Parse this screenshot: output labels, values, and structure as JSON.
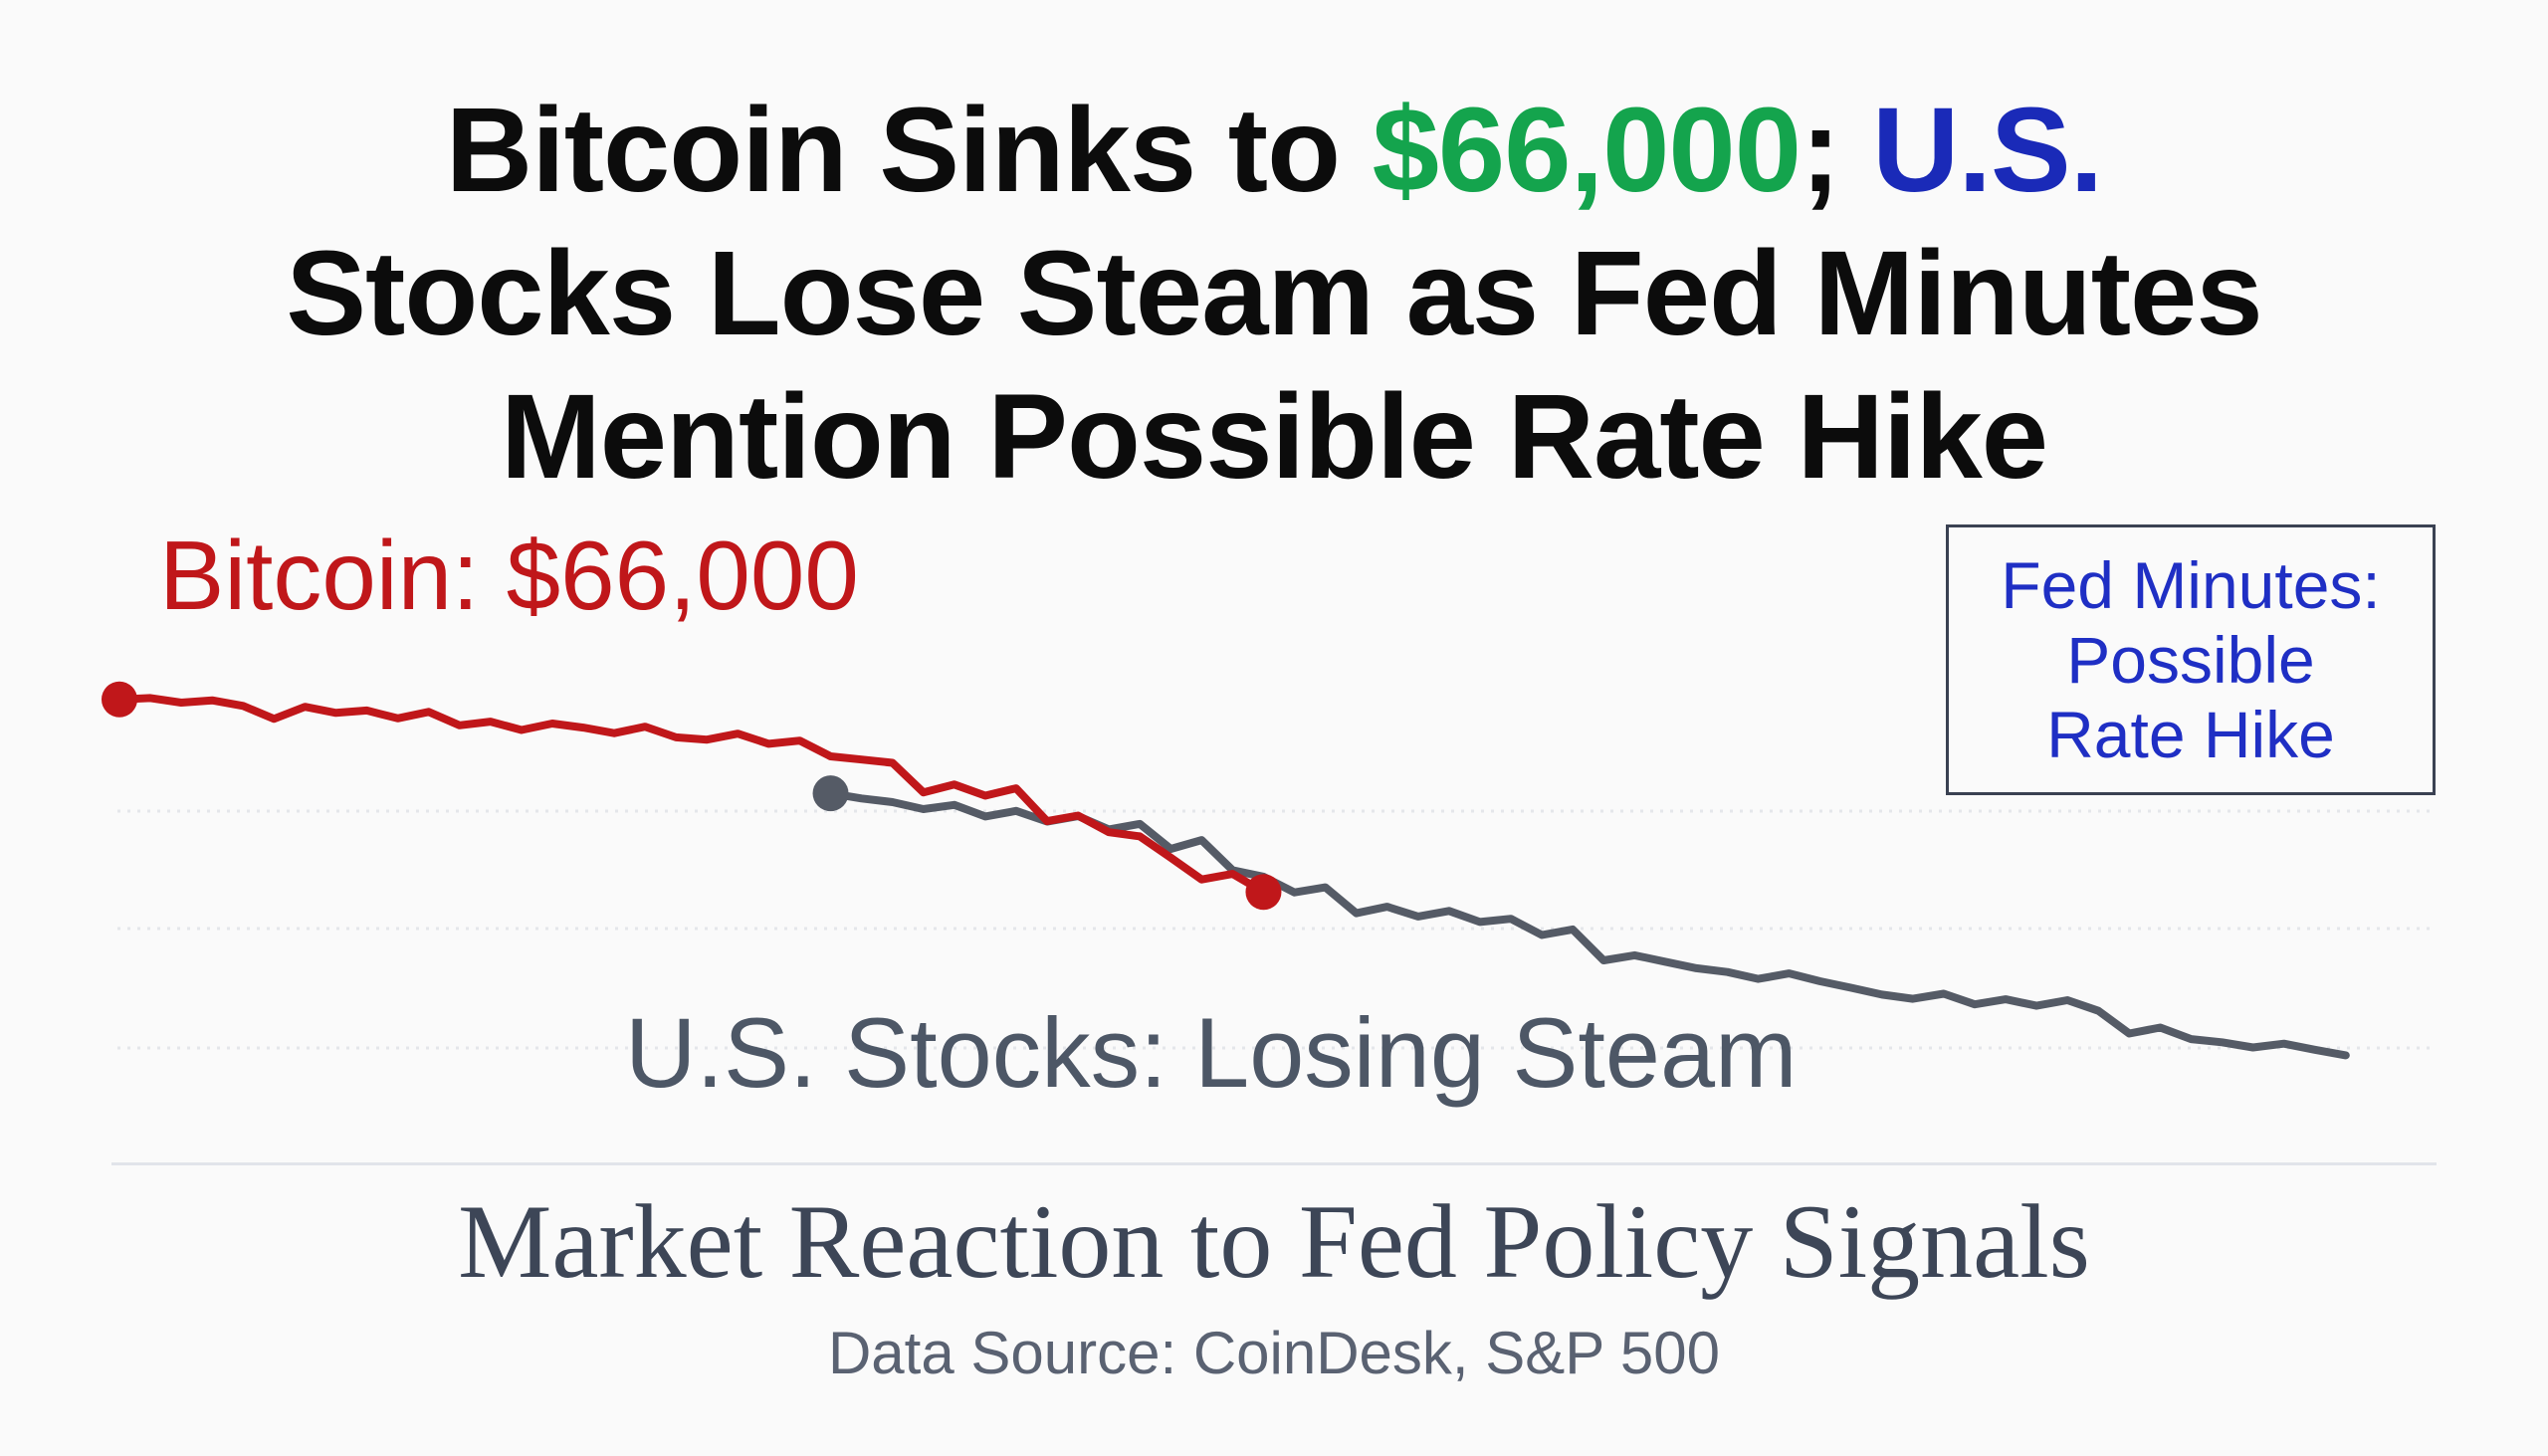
{
  "headline": {
    "part1": "Bitcoin Sinks to ",
    "price": "$66,000",
    "part2": "; ",
    "us": "U.S.",
    "line2": "Stocks Lose Steam as Fed Minutes",
    "line3": "Mention Possible Rate Hike"
  },
  "chart_data": {
    "type": "line",
    "title": "Market Reaction to Fed Policy Signals",
    "source": "Data Source: CoinDesk, S&P 500",
    "xlabel": "",
    "ylabel": "",
    "xlim": [
      0,
      150
    ],
    "ylim": [
      0,
      100
    ],
    "grid": true,
    "series": [
      {
        "name": "Bitcoin",
        "label": "Bitcoin: $66,000",
        "color": "#c0171a",
        "x": [
          0,
          2,
          4,
          6,
          8,
          10,
          12,
          14,
          16,
          18,
          20,
          22,
          24,
          26,
          28,
          30,
          32,
          34,
          36,
          38,
          40,
          42,
          44,
          46,
          48,
          50,
          52,
          54,
          56,
          58,
          60,
          62,
          64,
          66,
          68,
          70,
          72,
          74
        ],
        "y": [
          86.5,
          86.8,
          85.8,
          86.3,
          85.1,
          82.3,
          84.9,
          83.6,
          84.1,
          82.4,
          83.8,
          80.9,
          81.7,
          79.9,
          81.3,
          80.4,
          79.2,
          80.6,
          78.3,
          77.8,
          79.1,
          76.9,
          77.6,
          74.2,
          73.5,
          72.8,
          66.4,
          68.1,
          65.7,
          67.3,
          60.2,
          61.4,
          57.8,
          56.9,
          52.3,
          47.6,
          48.8,
          44.9
        ]
      },
      {
        "name": "U.S. Stocks",
        "label": "U.S. Stocks: Losing Steam",
        "color": "#555b66",
        "x": [
          46,
          48,
          50,
          52,
          54,
          56,
          58,
          60,
          62,
          64,
          66,
          68,
          70,
          72,
          74,
          76,
          78,
          80,
          82,
          84,
          86,
          88,
          90,
          92,
          94,
          96,
          98,
          100,
          102,
          104,
          106,
          108,
          110,
          112,
          114,
          116,
          118,
          120,
          122,
          124,
          126,
          128,
          130,
          132,
          134,
          136,
          138,
          140,
          142,
          144
        ],
        "y": [
          66.2,
          65.1,
          64.3,
          62.8,
          63.7,
          61.2,
          62.4,
          60.1,
          61.3,
          58.4,
          59.6,
          54.2,
          56.1,
          49.6,
          48.2,
          44.8,
          45.9,
          40.3,
          41.7,
          39.6,
          40.8,
          38.4,
          39.1,
          35.6,
          36.8,
          30.1,
          31.2,
          29.8,
          28.4,
          27.6,
          26.1,
          27.3,
          25.6,
          24.2,
          22.7,
          21.8,
          22.9,
          20.6,
          21.7,
          20.3,
          21.5,
          19.2,
          14.3,
          15.6,
          13.1,
          12.4,
          11.3,
          12.1,
          10.8,
          9.6
        ]
      }
    ],
    "annotation": {
      "line1": "Fed Minutes:",
      "line2": "Possible",
      "line3": "Rate Hike",
      "color": "#1f2fc4"
    }
  }
}
